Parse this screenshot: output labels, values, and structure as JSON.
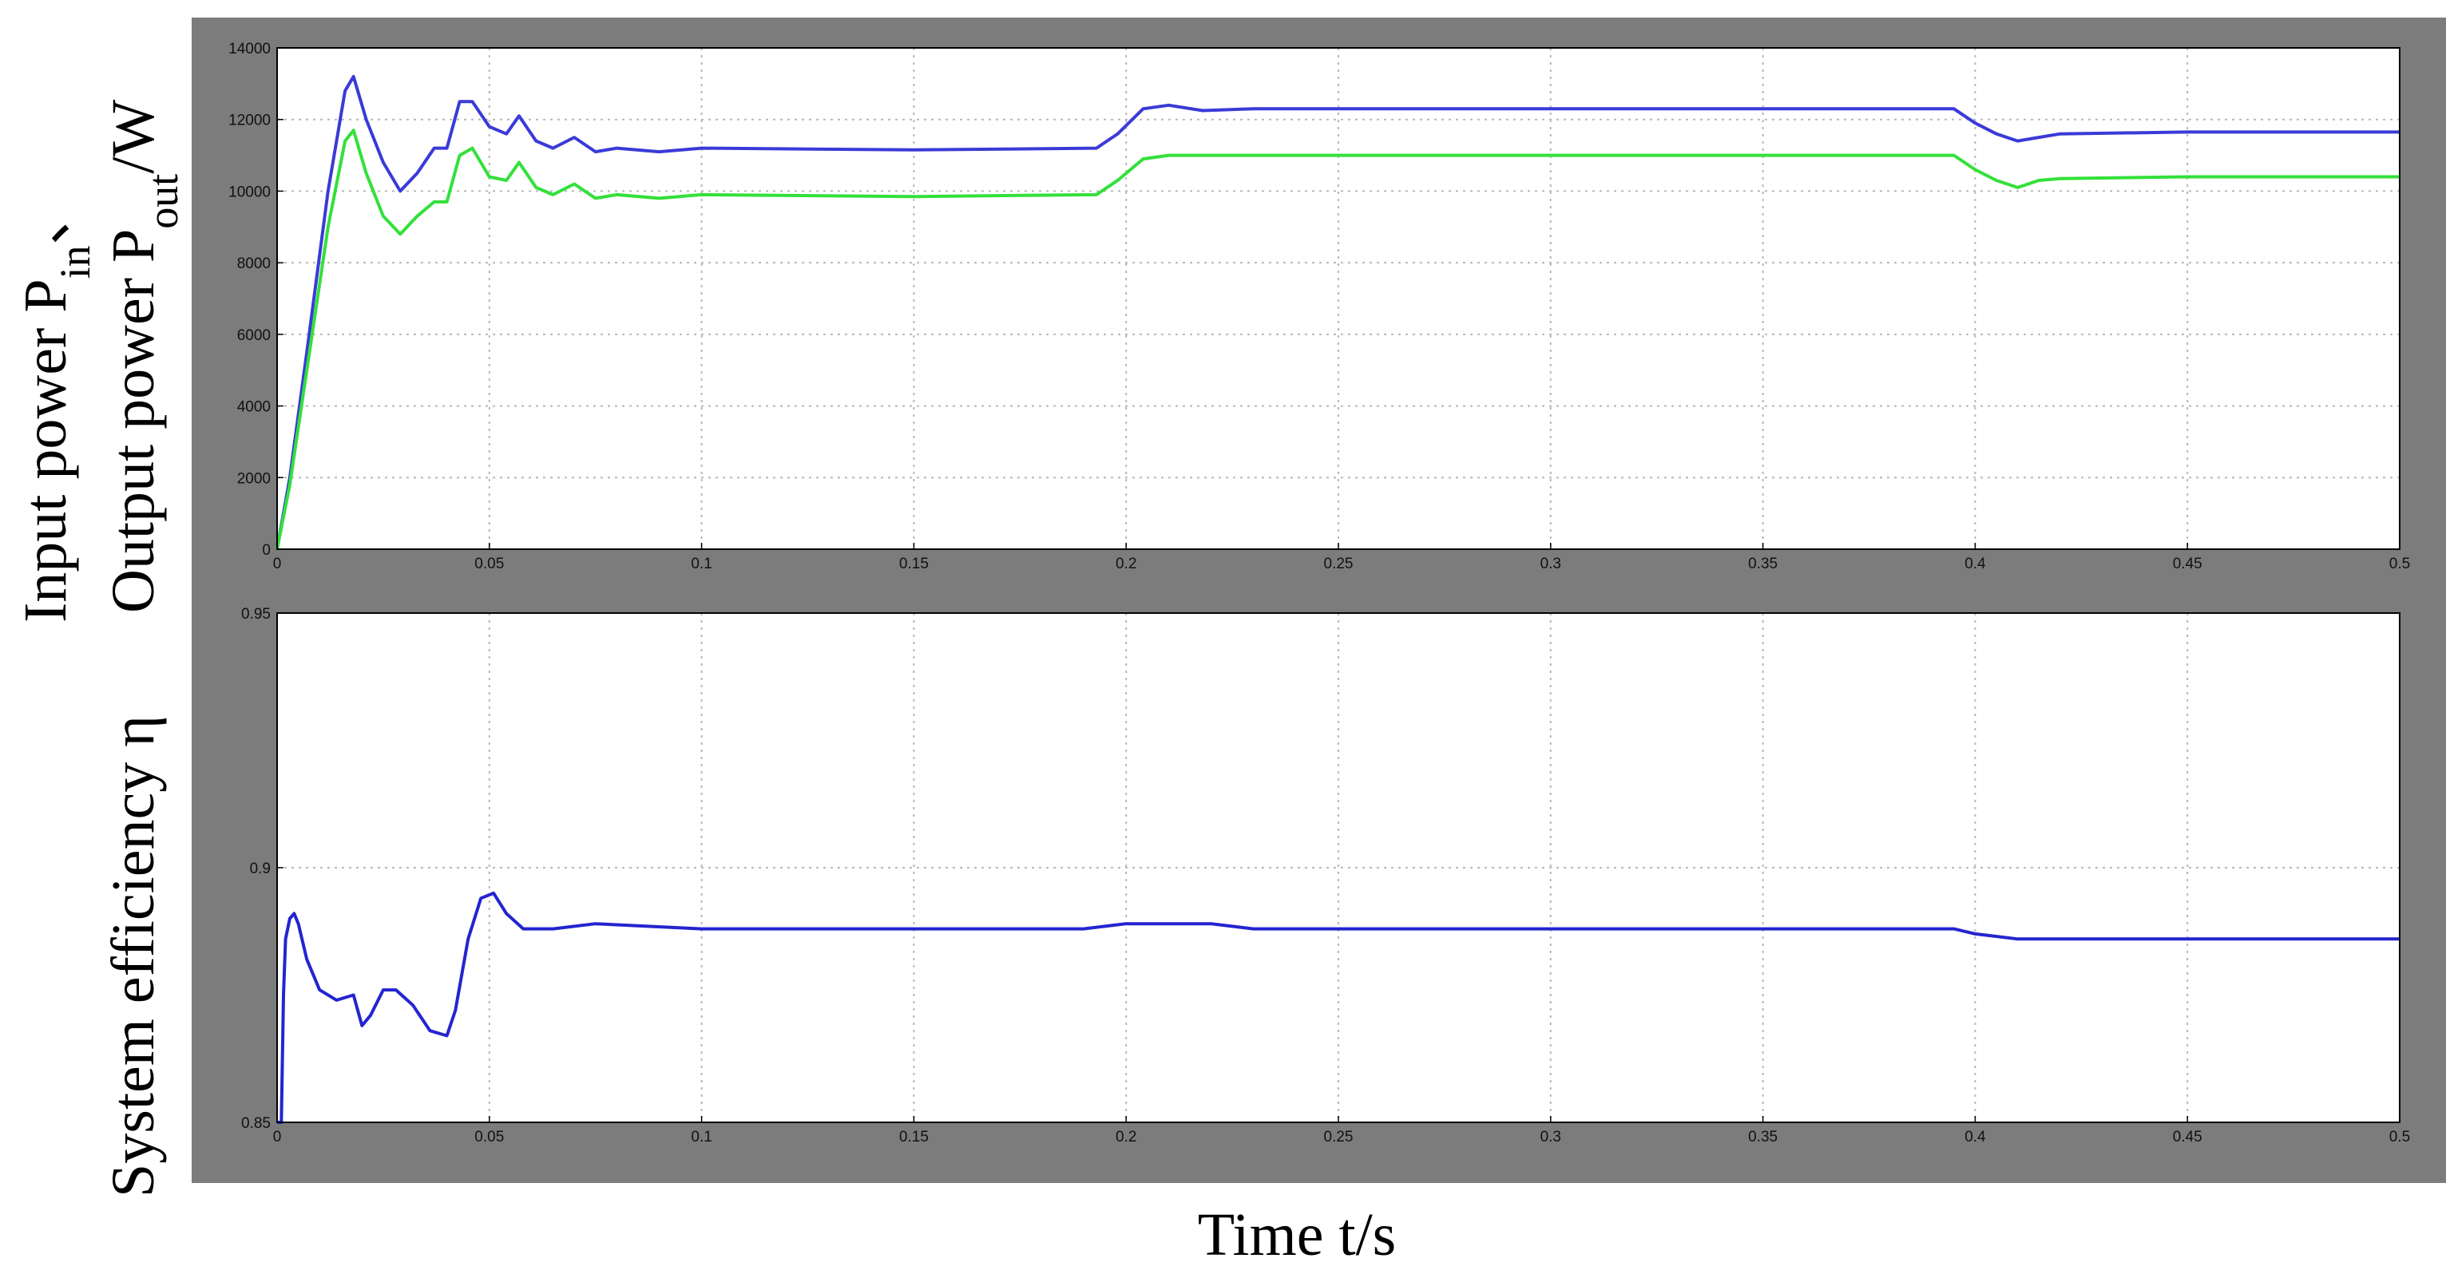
{
  "chart_data": [
    {
      "type": "line",
      "xlim": [
        0,
        0.5
      ],
      "ylim": [
        0,
        14000
      ],
      "grid": true,
      "x_ticks": [
        "0",
        "0.05",
        "0.1",
        "0.15",
        "0.2",
        "0.25",
        "0.3",
        "0.35",
        "0.4",
        "0.45",
        "0.5"
      ],
      "y_ticks": [
        "0",
        "2000",
        "4000",
        "6000",
        "8000",
        "10000",
        "12000",
        "14000"
      ],
      "series": [
        {
          "color": "#3a3ad8",
          "x": [
            0,
            0.003,
            0.007,
            0.012,
            0.016,
            0.018,
            0.021,
            0.025,
            0.029,
            0.033,
            0.037,
            0.04,
            0.043,
            0.046,
            0.05,
            0.054,
            0.057,
            0.061,
            0.065,
            0.07,
            0.075,
            0.08,
            0.09,
            0.1,
            0.15,
            0.193,
            0.198,
            0.204,
            0.21,
            0.218,
            0.23,
            0.3,
            0.395,
            0.4,
            0.405,
            0.41,
            0.415,
            0.42,
            0.45,
            0.5
          ],
          "y": [
            0,
            2000,
            5500,
            10000,
            12800,
            13200,
            12000,
            10800,
            10000,
            10500,
            11200,
            11200,
            12500,
            12500,
            11800,
            11600,
            12100,
            11400,
            11200,
            11500,
            11100,
            11200,
            11100,
            11200,
            11150,
            11200,
            11600,
            12300,
            12400,
            12250,
            12300,
            12300,
            12300,
            11900,
            11600,
            11400,
            11500,
            11600,
            11650,
            11650
          ]
        },
        {
          "color": "#33e03a",
          "x": [
            0,
            0.003,
            0.007,
            0.012,
            0.016,
            0.018,
            0.021,
            0.025,
            0.029,
            0.033,
            0.037,
            0.04,
            0.043,
            0.046,
            0.05,
            0.054,
            0.057,
            0.061,
            0.065,
            0.07,
            0.075,
            0.08,
            0.09,
            0.1,
            0.15,
            0.193,
            0.198,
            0.204,
            0.21,
            0.218,
            0.23,
            0.3,
            0.395,
            0.4,
            0.405,
            0.41,
            0.415,
            0.42,
            0.45,
            0.5
          ],
          "y": [
            0,
            1800,
            5000,
            9000,
            11400,
            11700,
            10500,
            9300,
            8800,
            9300,
            9700,
            9700,
            11000,
            11200,
            10400,
            10300,
            10800,
            10100,
            9900,
            10200,
            9800,
            9900,
            9800,
            9900,
            9850,
            9900,
            10300,
            10900,
            11000,
            11000,
            11000,
            11000,
            11000,
            10600,
            10300,
            10100,
            10300,
            10350,
            10400,
            10400
          ]
        }
      ]
    },
    {
      "type": "line",
      "xlim": [
        0,
        0.5
      ],
      "ylim": [
        0.85,
        0.95
      ],
      "grid": true,
      "x_ticks": [
        "0",
        "0.05",
        "0.1",
        "0.15",
        "0.2",
        "0.25",
        "0.3",
        "0.35",
        "0.4",
        "0.45",
        "0.5"
      ],
      "y_ticks": [
        "0.85",
        "0.9",
        "0.95"
      ],
      "series": [
        {
          "color": "#2424d0",
          "x": [
            0,
            0.001,
            0.0015,
            0.002,
            0.003,
            0.004,
            0.005,
            0.007,
            0.01,
            0.014,
            0.018,
            0.02,
            0.022,
            0.025,
            0.028,
            0.032,
            0.036,
            0.04,
            0.042,
            0.045,
            0.048,
            0.051,
            0.054,
            0.058,
            0.065,
            0.075,
            0.1,
            0.19,
            0.2,
            0.21,
            0.22,
            0.23,
            0.3,
            0.395,
            0.4,
            0.41,
            0.415,
            0.5
          ],
          "y": [
            0.85,
            0.85,
            0.875,
            0.886,
            0.89,
            0.891,
            0.889,
            0.882,
            0.876,
            0.874,
            0.875,
            0.869,
            0.871,
            0.876,
            0.876,
            0.873,
            0.868,
            0.867,
            0.872,
            0.886,
            0.894,
            0.895,
            0.891,
            0.888,
            0.888,
            0.889,
            0.888,
            0.888,
            0.889,
            0.889,
            0.889,
            0.888,
            0.888,
            0.888,
            0.887,
            0.886,
            0.886,
            0.886
          ]
        }
      ]
    }
  ],
  "labels": {
    "ylabel_line1": "System efficiency η",
    "ylabel_line2": "Input power P",
    "ylabel_line2_sub": "in",
    "ylabel_line2_sep": "、",
    "ylabel_line2_b": "Output power P",
    "ylabel_line2_sub2": "out",
    "ylabel_line2_end": "/W",
    "xlabel": "Time t/s"
  },
  "colors": {
    "figure_bg": "#7c7c7c",
    "axes_bg": "#ffffff",
    "grid": "#b8b8b8"
  }
}
